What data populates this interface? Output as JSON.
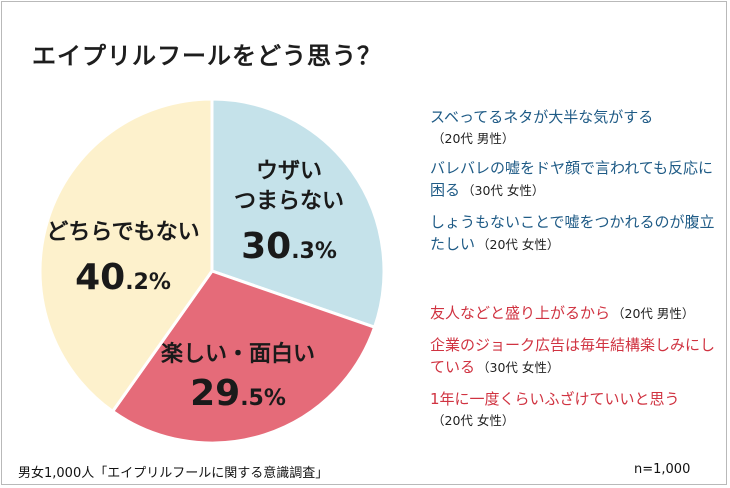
{
  "chart_data": {
    "type": "pie",
    "title": "エイプリルフールをどう思う？",
    "categories": [
      "ウザい・つまらない",
      "楽しい・面白い",
      "どちらでもない"
    ],
    "values": [
      30.3,
      29.5,
      40.2
    ],
    "colors": [
      "#c5e2ea",
      "#e56b79",
      "#fdf1cc"
    ],
    "start": "12 o'clock, clockwise"
  },
  "labels": {
    "boring": {
      "line1": "ウザい",
      "line2": "つまらない",
      "num": "30",
      "unit": ".3%"
    },
    "fun": {
      "line1": "楽しい・面白い",
      "num": "29",
      "unit": ".5%"
    },
    "neither": {
      "line1": "どちらでもない",
      "num": "40",
      "unit": ".2%"
    }
  },
  "comments_negative": [
    {
      "text": "スベってるネタが大半な気がする",
      "meta": "（20代 男性）"
    },
    {
      "text": "バレバレの嘘をドヤ顔で言われても反応に困る",
      "meta": "（30代 女性）"
    },
    {
      "text": "しょうもないことで嘘をつかれるのが腹立たしい",
      "meta": "（20代 女性）"
    }
  ],
  "comments_positive": [
    {
      "text": "友人などと盛り上がるから",
      "meta": "（20代 男性）"
    },
    {
      "text": "企業のジョーク広告は毎年結構楽しみにしている",
      "meta": "（30代 女性）"
    },
    {
      "text": "1年に一度くらいふざけていいと思う",
      "meta": "（20代 女性）"
    }
  ],
  "footer": {
    "source": "男女1,000人「エイプリルフールに関する意識調査」",
    "n": "n=1,000"
  }
}
